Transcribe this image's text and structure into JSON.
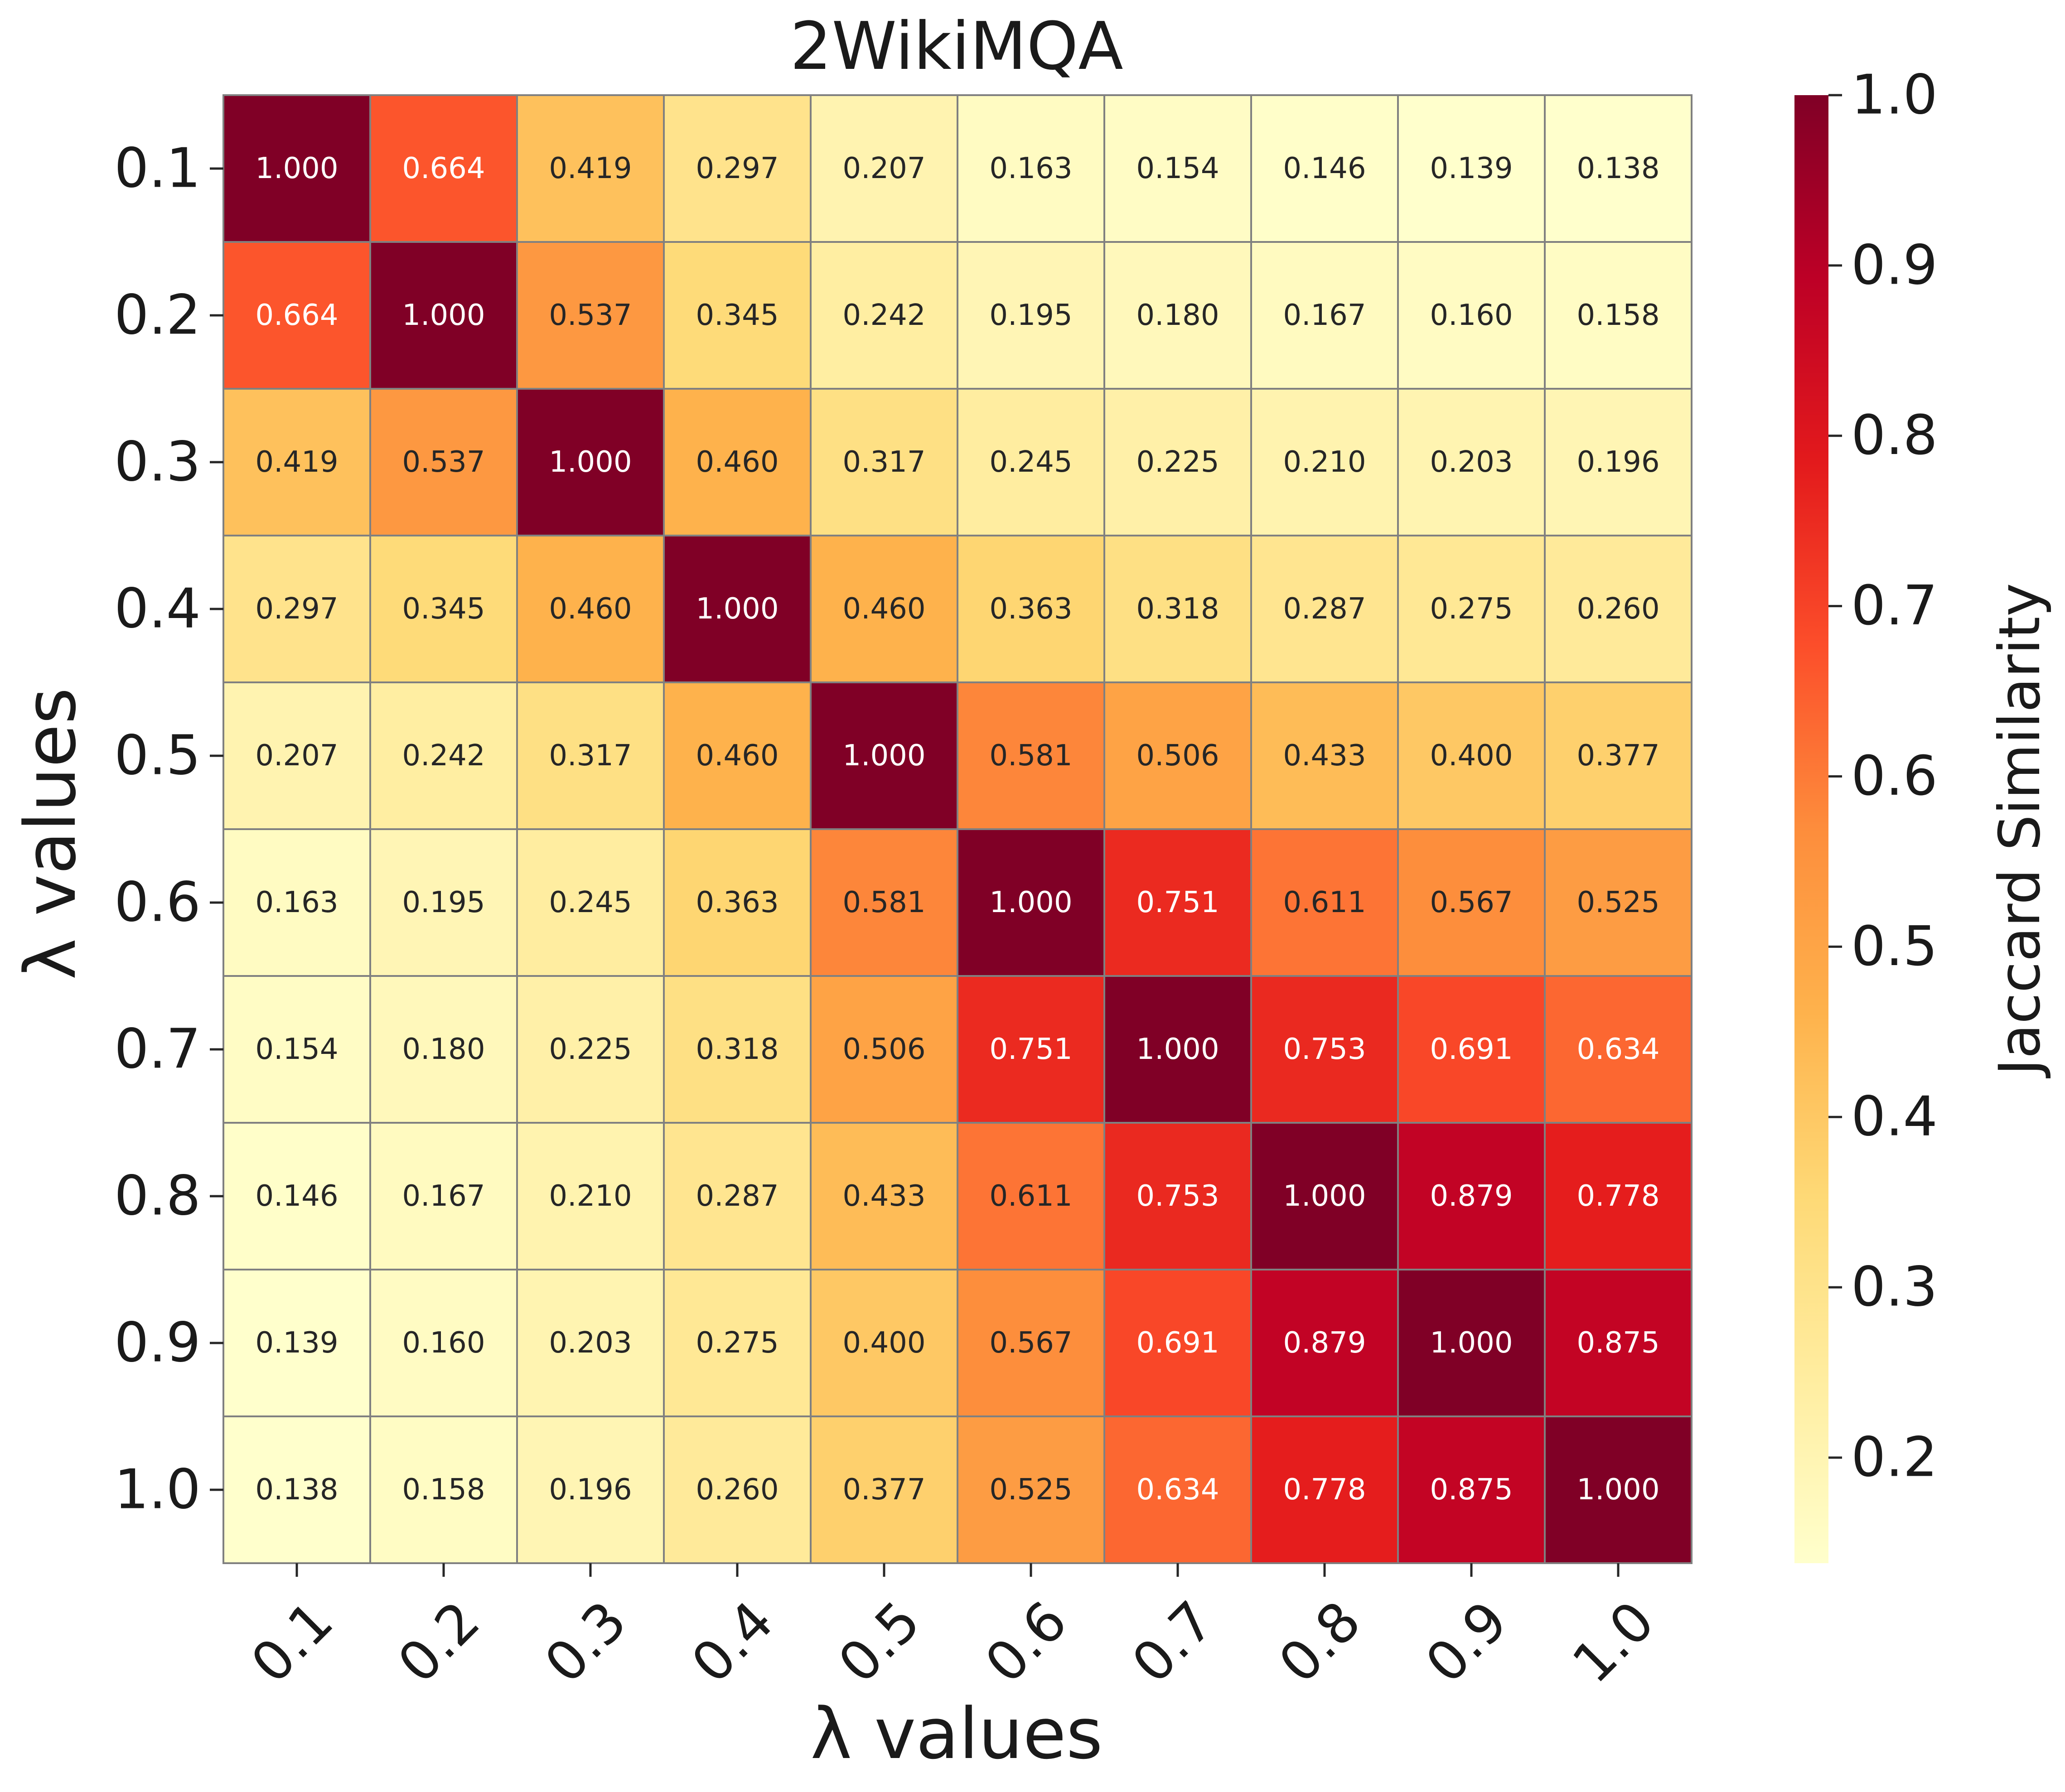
{
  "chart_data": {
    "type": "heatmap",
    "title": "2WikiMQA",
    "xlabel": "λ values",
    "ylabel": "λ values",
    "x_categories": [
      "0.1",
      "0.2",
      "0.3",
      "0.4",
      "0.5",
      "0.6",
      "0.7",
      "0.8",
      "0.9",
      "1.0"
    ],
    "y_categories": [
      "0.1",
      "0.2",
      "0.3",
      "0.4",
      "0.5",
      "0.6",
      "0.7",
      "0.8",
      "0.9",
      "1.0"
    ],
    "values": [
      [
        1.0,
        0.664,
        0.419,
        0.297,
        0.207,
        0.163,
        0.154,
        0.146,
        0.139,
        0.138
      ],
      [
        0.664,
        1.0,
        0.537,
        0.345,
        0.242,
        0.195,
        0.18,
        0.167,
        0.16,
        0.158
      ],
      [
        0.419,
        0.537,
        1.0,
        0.46,
        0.317,
        0.245,
        0.225,
        0.21,
        0.203,
        0.196
      ],
      [
        0.297,
        0.345,
        0.46,
        1.0,
        0.46,
        0.363,
        0.318,
        0.287,
        0.275,
        0.26
      ],
      [
        0.207,
        0.242,
        0.317,
        0.46,
        1.0,
        0.581,
        0.506,
        0.433,
        0.4,
        0.377
      ],
      [
        0.163,
        0.195,
        0.245,
        0.363,
        0.581,
        1.0,
        0.751,
        0.611,
        0.567,
        0.525
      ],
      [
        0.154,
        0.18,
        0.225,
        0.318,
        0.506,
        0.751,
        1.0,
        0.753,
        0.691,
        0.634
      ],
      [
        0.146,
        0.167,
        0.21,
        0.287,
        0.433,
        0.611,
        0.753,
        1.0,
        0.879,
        0.778
      ],
      [
        0.139,
        0.16,
        0.203,
        0.275,
        0.4,
        0.567,
        0.691,
        0.879,
        1.0,
        0.875
      ],
      [
        0.138,
        0.158,
        0.196,
        0.26,
        0.377,
        0.525,
        0.634,
        0.778,
        0.875,
        1.0
      ]
    ],
    "value_format": "3 decimals",
    "colorbar": {
      "label": "Jaccard Similarity",
      "range": [
        0.138,
        1.0
      ],
      "ticks": [
        "0.2",
        "0.3",
        "0.4",
        "0.5",
        "0.6",
        "0.7",
        "0.8",
        "0.9",
        "1.0"
      ],
      "colormap": "YlOrRd",
      "colormap_stops": [
        "#ffffcc",
        "#ffeda0",
        "#fed976",
        "#feb24c",
        "#fd8d3c",
        "#fc4e2a",
        "#e31a1c",
        "#bd0026",
        "#800026"
      ]
    },
    "grid": false,
    "cell_border_color": "#808080"
  }
}
